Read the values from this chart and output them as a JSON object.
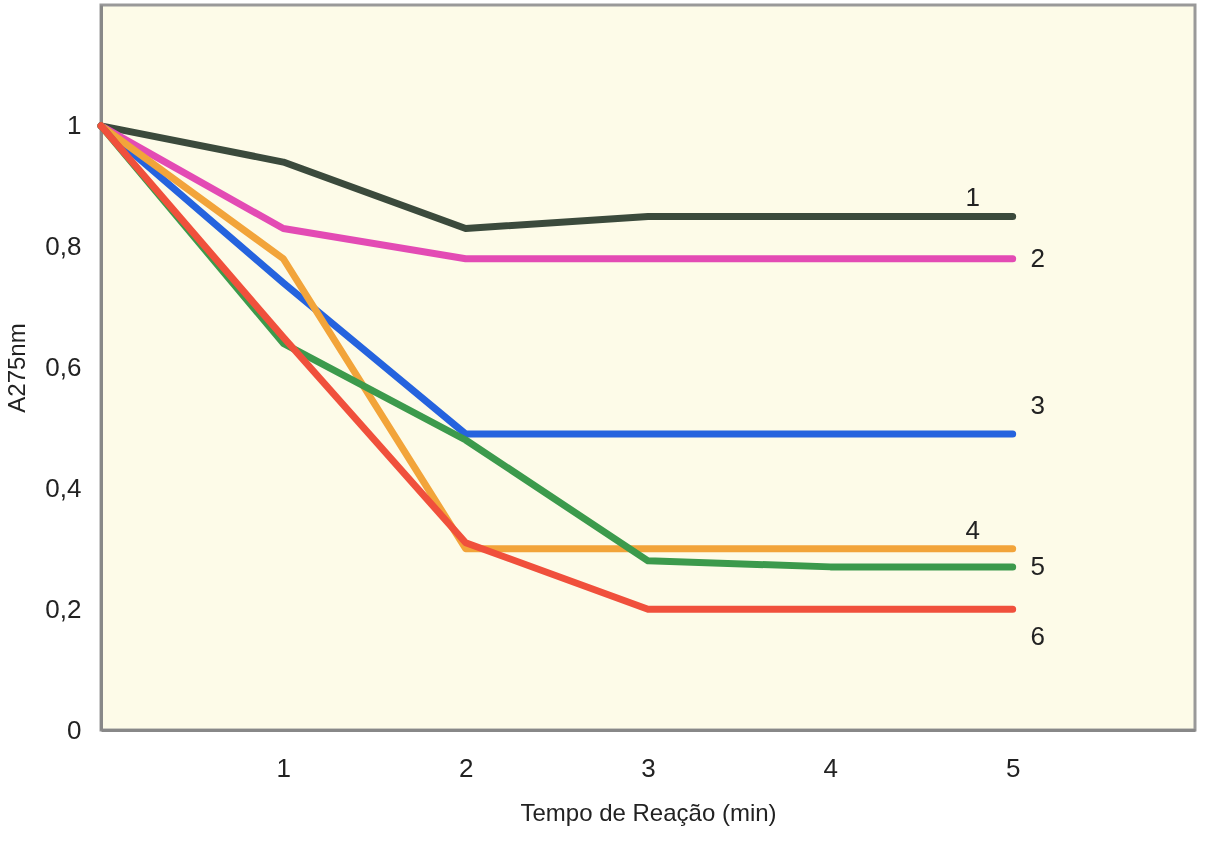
{
  "chart_data": {
    "type": "line",
    "xlabel": "Tempo de Reação (min)",
    "ylabel": "A275nm",
    "x": [
      0,
      1,
      2,
      3,
      4,
      5
    ],
    "xlim": [
      0,
      6
    ],
    "ylim": [
      0,
      1.2
    ],
    "xticks": [
      1,
      2,
      3,
      4,
      5
    ],
    "yticks": [
      0,
      {
        "value": 0.2,
        "label": "0,2"
      },
      {
        "value": 0.4,
        "label": "0,4"
      },
      {
        "value": 0.6,
        "label": "0,6"
      },
      {
        "value": 0.8,
        "label": "0,8"
      },
      1
    ],
    "grid": false,
    "legend": false,
    "marker": "none",
    "line_style": "solid",
    "series": [
      {
        "name": "1",
        "color": "#3b4a3c",
        "values": [
          1,
          0.94,
          0.83,
          0.85,
          0.85,
          0.85
        ]
      },
      {
        "name": "2",
        "color": "#e34bb4",
        "values": [
          1,
          0.83,
          0.78,
          0.78,
          0.78,
          0.78
        ]
      },
      {
        "name": "3",
        "color": "#2563de",
        "values": [
          1,
          0.74,
          0.49,
          0.49,
          0.49,
          0.49
        ]
      },
      {
        "name": "4",
        "color": "#f2a43a",
        "values": [
          1,
          0.78,
          0.3,
          0.3,
          0.3,
          0.3
        ]
      },
      {
        "name": "5",
        "color": "#3c9a4c",
        "values": [
          1,
          0.64,
          0.48,
          0.28,
          0.27,
          0.27
        ]
      },
      {
        "name": "6",
        "color": "#f0503c",
        "values": [
          1,
          0.65,
          0.31,
          0.2,
          0.2,
          0.2
        ]
      }
    ]
  }
}
